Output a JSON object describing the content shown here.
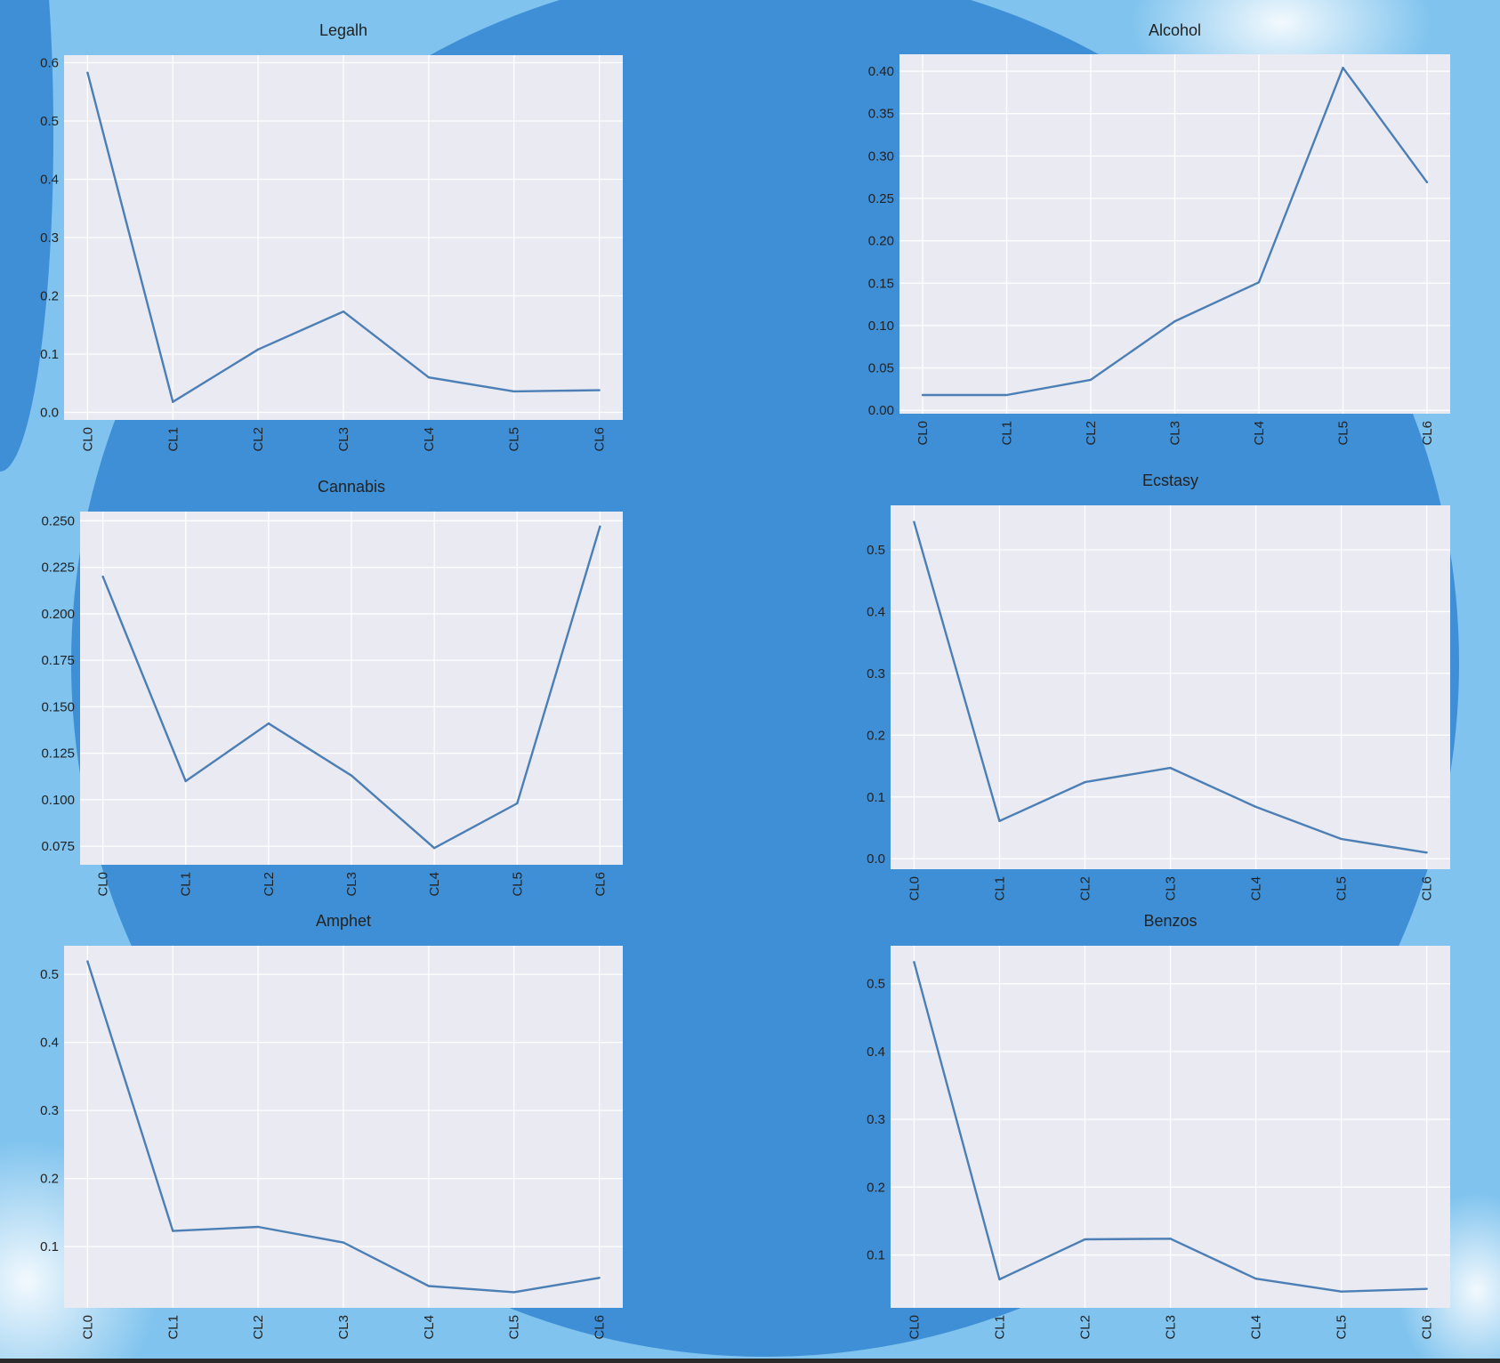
{
  "colors": {
    "page_background": "#7fc3ee",
    "circle_background": "#3f8fd6",
    "plot_background": "#eaeaf2",
    "gridline": "#ffffff",
    "series_line": "#4c7fb5"
  },
  "chart_data": [
    {
      "type": "line",
      "title": "Legalh",
      "categories": [
        "CL0",
        "CL1",
        "CL2",
        "CL3",
        "CL4",
        "CL5",
        "CL6"
      ],
      "values": [
        0.583,
        0.018,
        0.108,
        0.173,
        0.06,
        0.036,
        0.038
      ],
      "ylim": [
        -0.013,
        0.613
      ],
      "yticks": [
        0.0,
        0.1,
        0.2,
        0.3,
        0.4,
        0.5,
        0.6
      ],
      "ytick_labels": [
        "0.0",
        "0.1",
        "0.2",
        "0.3",
        "0.4",
        "0.5",
        "0.6"
      ],
      "grid": true
    },
    {
      "type": "line",
      "title": "Alcohol",
      "categories": [
        "CL0",
        "CL1",
        "CL2",
        "CL3",
        "CL4",
        "CL5",
        "CL6"
      ],
      "values": [
        0.018,
        0.018,
        0.036,
        0.105,
        0.151,
        0.404,
        0.269
      ],
      "ylio": null,
      "ylim": [
        -0.004,
        0.42
      ],
      "yticks": [
        0.0,
        0.05,
        0.1,
        0.15,
        0.2,
        0.25,
        0.3,
        0.35,
        0.4
      ],
      "ytick_labels": [
        "0.00",
        "0.05",
        "0.10",
        "0.15",
        "0.20",
        "0.25",
        "0.30",
        "0.35",
        "0.40"
      ],
      "grid": true
    },
    {
      "type": "line",
      "title": "Cannabis",
      "categories": [
        "CL0",
        "CL1",
        "CL2",
        "CL3",
        "CL4",
        "CL5",
        "CL6"
      ],
      "values": [
        0.22,
        0.11,
        0.141,
        0.113,
        0.074,
        0.098,
        0.247
      ],
      "ylim": [
        0.065,
        0.255
      ],
      "yticks": [
        0.075,
        0.1,
        0.125,
        0.15,
        0.175,
        0.2,
        0.225,
        0.25
      ],
      "ytick_labels": [
        "0.075",
        "0.100",
        "0.125",
        "0.150",
        "0.175",
        "0.200",
        "0.225",
        "0.250"
      ],
      "grid": true
    },
    {
      "type": "line",
      "title": "Ecstasy",
      "categories": [
        "CL0",
        "CL1",
        "CL2",
        "CL3",
        "CL4",
        "CL5",
        "CL6"
      ],
      "values": [
        0.545,
        0.061,
        0.124,
        0.147,
        0.084,
        0.032,
        0.01
      ],
      "ylim": [
        -0.017,
        0.572
      ],
      "yticks": [
        0.0,
        0.1,
        0.2,
        0.3,
        0.4,
        0.5
      ],
      "ytick_labels": [
        "0.0",
        "0.1",
        "0.2",
        "0.3",
        "0.4",
        "0.5"
      ],
      "grid": true
    },
    {
      "type": "line",
      "title": "Amphet",
      "categories": [
        "CL0",
        "CL1",
        "CL2",
        "CL3",
        "CL4",
        "CL5",
        "CL6"
      ],
      "values": [
        0.519,
        0.123,
        0.129,
        0.106,
        0.042,
        0.033,
        0.054
      ],
      "ylim": [
        0.01,
        0.542
      ],
      "yticks": [
        0.1,
        0.2,
        0.3,
        0.4,
        0.5
      ],
      "ytick_labels": [
        "0.1",
        "0.2",
        "0.3",
        "0.4",
        "0.5"
      ],
      "grid": true
    },
    {
      "type": "line",
      "title": "Benzos",
      "categories": [
        "CL0",
        "CL1",
        "CL2",
        "CL3",
        "CL4",
        "CL5",
        "CL6"
      ],
      "values": [
        0.532,
        0.064,
        0.123,
        0.124,
        0.065,
        0.046,
        0.05
      ],
      "ylim": [
        0.022,
        0.556
      ],
      "yticks": [
        0.1,
        0.2,
        0.3,
        0.4,
        0.5
      ],
      "ytick_labels": [
        "0.1",
        "0.2",
        "0.3",
        "0.4",
        "0.5"
      ],
      "grid": true
    }
  ]
}
